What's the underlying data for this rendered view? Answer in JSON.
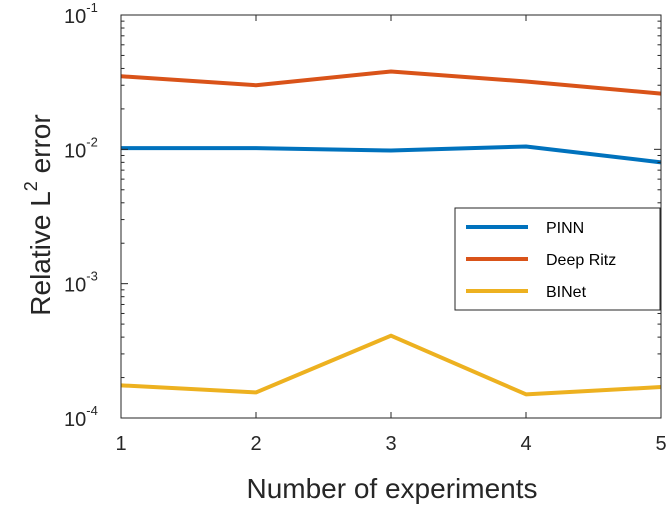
{
  "chart_data": {
    "type": "line",
    "title": "",
    "xlabel": "Number of experiments",
    "ylabel_main": "Relative L",
    "ylabel_sup": "2",
    "ylabel_tail": " error",
    "x": [
      1,
      2,
      3,
      4,
      5
    ],
    "x_ticks": [
      "1",
      "2",
      "3",
      "4",
      "5"
    ],
    "xlim": [
      1,
      5
    ],
    "yscale": "log",
    "ylim": [
      0.0001,
      0.1
    ],
    "y_ticks": [
      {
        "value": 0.1,
        "base": "10",
        "exp": "-1"
      },
      {
        "value": 0.01,
        "base": "10",
        "exp": "-2"
      },
      {
        "value": 0.001,
        "base": "10",
        "exp": "-3"
      },
      {
        "value": 0.0001,
        "base": "10",
        "exp": "-4"
      }
    ],
    "grid": false,
    "legend_position": "right",
    "series": [
      {
        "name": "PINN",
        "color": "#0072BD",
        "values": [
          0.0102,
          0.0102,
          0.0098,
          0.0105,
          0.008
        ]
      },
      {
        "name": "Deep Ritz",
        "color": "#D95319",
        "values": [
          0.035,
          0.03,
          0.038,
          0.032,
          0.026
        ]
      },
      {
        "name": "BINet",
        "color": "#EDB120",
        "values": [
          0.000175,
          0.000155,
          0.00041,
          0.00015,
          0.00017
        ]
      }
    ]
  }
}
